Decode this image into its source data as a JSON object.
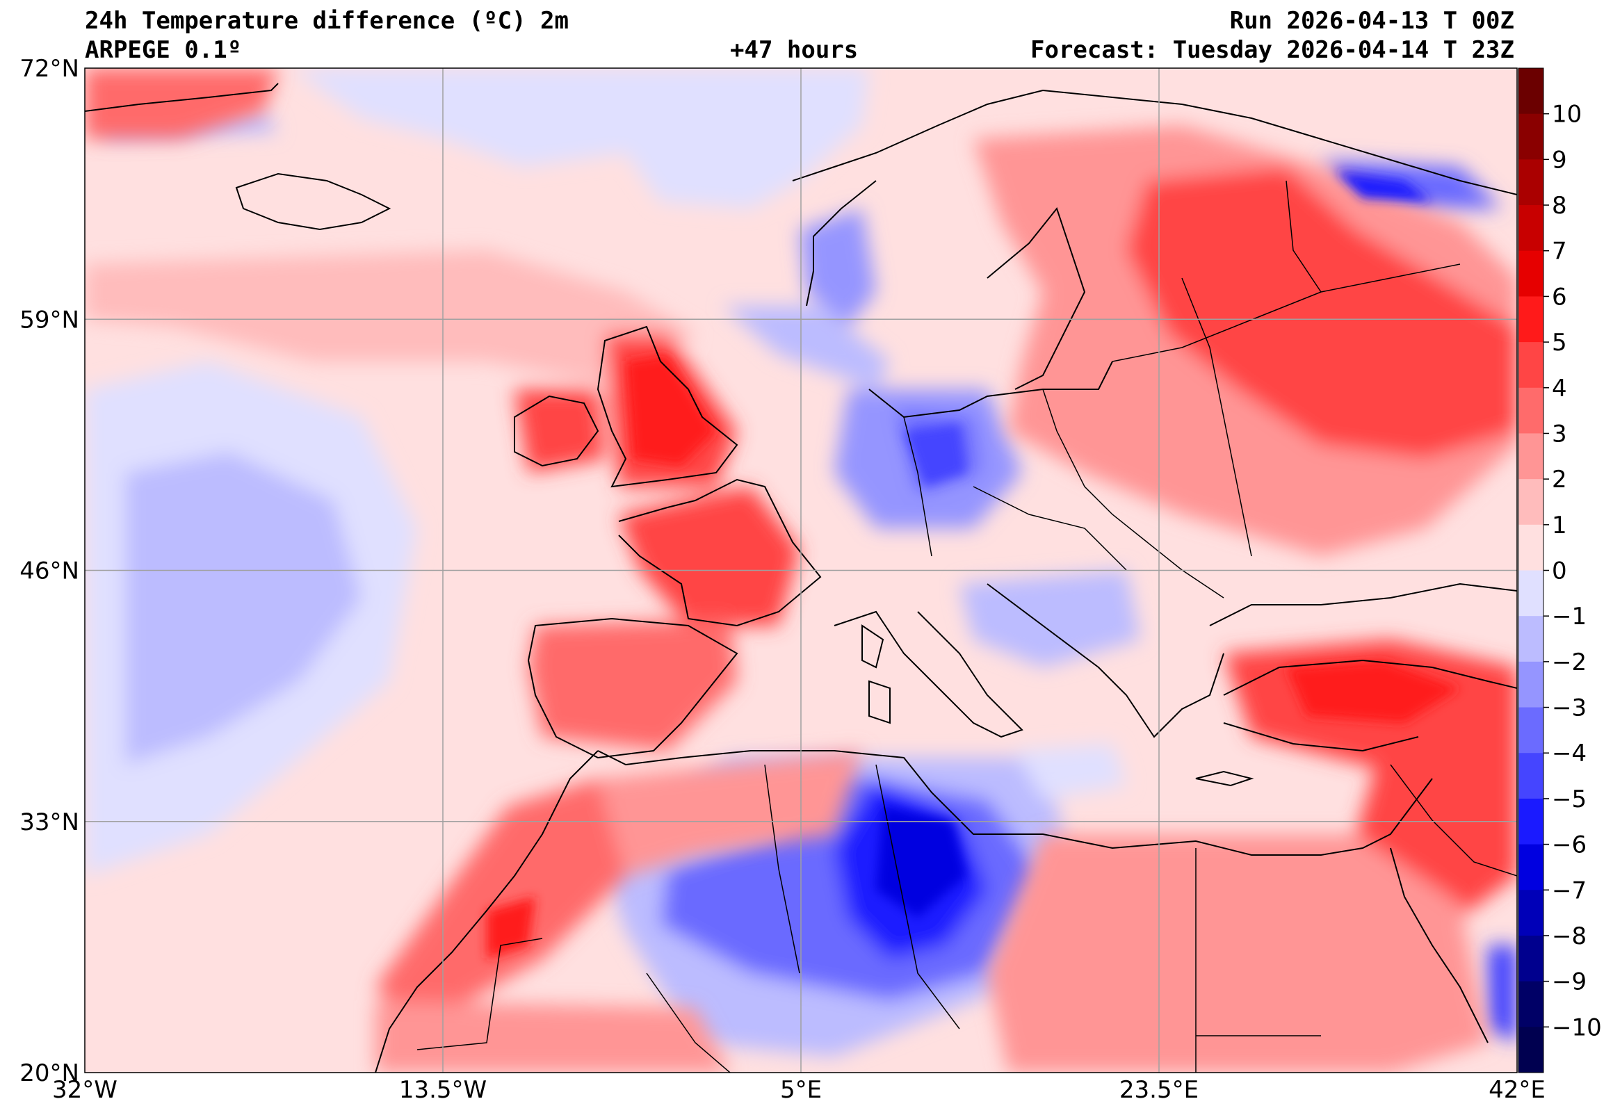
{
  "header": {
    "title": "24h Temperature difference (ºC) 2m",
    "model": "ARPEGE 0.1º",
    "lead_time": "+47 hours",
    "run": "Run 2026-04-13 T 00Z",
    "forecast": "Forecast: Tuesday 2026-04-14 T 23Z"
  },
  "map": {
    "lat_labels": [
      "72°N",
      "59°N",
      "46°N",
      "33°N",
      "20°N"
    ],
    "lon_labels": [
      "32°W",
      "13.5°W",
      "5°E",
      "23.5°E",
      "42°E"
    ],
    "lat_values": [
      72,
      59,
      46,
      33,
      20
    ],
    "lon_values": [
      -32,
      -13.5,
      5,
      23.5,
      42
    ]
  },
  "colorbar": {
    "labels": [
      "10",
      "9",
      "8",
      "7",
      "6",
      "5",
      "4",
      "3",
      "2",
      "1",
      "0",
      "−1",
      "−2",
      "−3",
      "−4",
      "−5",
      "−6",
      "−7",
      "−8",
      "−9",
      "−10"
    ],
    "colors": [
      "#6b0000",
      "#8a0000",
      "#aa0000",
      "#c80000",
      "#e60000",
      "#ff1a1a",
      "#ff4545",
      "#ff6b6b",
      "#ff9595",
      "#ffbcbc",
      "#ffe0e0",
      "#e0e0ff",
      "#bcbcff",
      "#9595ff",
      "#6b6bff",
      "#4545ff",
      "#1a1aff",
      "#0000e0",
      "#0000b8",
      "#00008e",
      "#000066",
      "#000050"
    ]
  }
}
